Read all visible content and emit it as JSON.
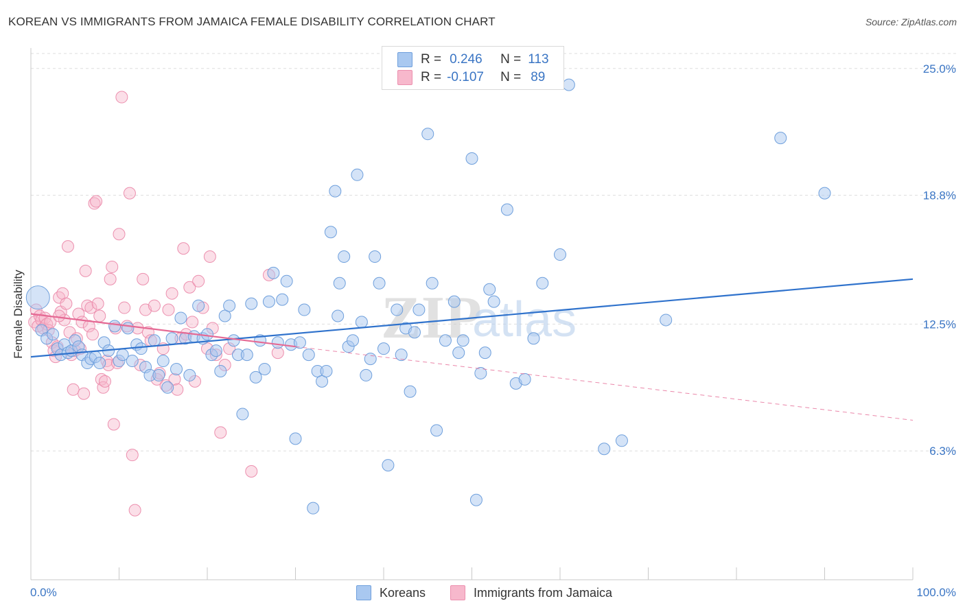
{
  "header": {
    "title": "KOREAN VS IMMIGRANTS FROM JAMAICA FEMALE DISABILITY CORRELATION CHART",
    "source": "Source: ZipAtlas.com"
  },
  "legend": {
    "rows": [
      {
        "r_label": "R =",
        "r_value": "0.246",
        "n_label": "N =",
        "n_value": "113"
      },
      {
        "r_label": "R =",
        "r_value": "-0.107",
        "n_label": "N =",
        "n_value": "89"
      }
    ]
  },
  "watermark": {
    "zip": "ZIP",
    "atlas": "atlas"
  },
  "colors": {
    "korean_fill": "#a9c8f0",
    "korean_stroke": "#6e9fdc",
    "korean_line": "#2f72cc",
    "jamaica_fill": "#f7b8cc",
    "jamaica_stroke": "#ec8fae",
    "jamaica_line": "#e56994",
    "tick_label": "#3a75c4",
    "grid": "#dddddd"
  },
  "chart_data": {
    "type": "scatter",
    "title": "KOREAN VS IMMIGRANTS FROM JAMAICA FEMALE DISABILITY CORRELATION CHART",
    "xlabel": "",
    "ylabel": "Female Disability",
    "xlim": [
      0,
      100
    ],
    "ylim": [
      0,
      26
    ],
    "x_tick_labels": [
      "0.0%",
      "100.0%"
    ],
    "y_ticks": [
      6.3,
      12.5,
      18.8,
      25.0
    ],
    "y_tick_labels": [
      "6.3%",
      "12.5%",
      "18.8%",
      "25.0%"
    ],
    "grid": "horizontal dashed",
    "legend_position": "top-center",
    "series": [
      {
        "name": "Koreans",
        "r": 0.246,
        "n": 113,
        "trend": {
          "x": [
            0,
            100
          ],
          "y": [
            10.9,
            14.7
          ],
          "style": "solid"
        },
        "points": [
          [
            0.8,
            13.8
          ],
          [
            1.2,
            12.2
          ],
          [
            1.8,
            11.8
          ],
          [
            2.5,
            12.0
          ],
          [
            3.0,
            11.3
          ],
          [
            3.4,
            11.0
          ],
          [
            3.8,
            11.5
          ],
          [
            4.2,
            11.1
          ],
          [
            4.6,
            11.2
          ],
          [
            5.0,
            11.7
          ],
          [
            5.4,
            11.4
          ],
          [
            5.8,
            11.0
          ],
          [
            6.4,
            10.6
          ],
          [
            6.8,
            10.8
          ],
          [
            7.3,
            10.9
          ],
          [
            7.8,
            10.6
          ],
          [
            8.3,
            11.6
          ],
          [
            8.8,
            11.2
          ],
          [
            9.5,
            12.4
          ],
          [
            10.0,
            10.7
          ],
          [
            10.4,
            11.0
          ],
          [
            11.0,
            12.3
          ],
          [
            11.5,
            10.7
          ],
          [
            12.0,
            11.5
          ],
          [
            12.5,
            11.3
          ],
          [
            13.0,
            10.4
          ],
          [
            13.5,
            10.0
          ],
          [
            14.0,
            11.7
          ],
          [
            14.5,
            10.0
          ],
          [
            15.0,
            10.7
          ],
          [
            15.5,
            9.4
          ],
          [
            16.0,
            11.8
          ],
          [
            16.5,
            10.3
          ],
          [
            17.0,
            12.8
          ],
          [
            17.5,
            11.8
          ],
          [
            18.0,
            10.0
          ],
          [
            18.5,
            11.9
          ],
          [
            19.0,
            13.4
          ],
          [
            19.5,
            11.8
          ],
          [
            20.0,
            12.0
          ],
          [
            20.5,
            11.0
          ],
          [
            21.0,
            11.2
          ],
          [
            21.5,
            10.2
          ],
          [
            22.0,
            12.9
          ],
          [
            22.5,
            13.4
          ],
          [
            23.0,
            11.7
          ],
          [
            23.5,
            11.0
          ],
          [
            24.0,
            8.1
          ],
          [
            24.5,
            11.0
          ],
          [
            25.0,
            13.5
          ],
          [
            25.5,
            9.9
          ],
          [
            26.0,
            11.7
          ],
          [
            26.5,
            10.3
          ],
          [
            27.0,
            13.6
          ],
          [
            27.5,
            15.0
          ],
          [
            28.0,
            11.6
          ],
          [
            28.5,
            13.7
          ],
          [
            29.0,
            14.6
          ],
          [
            29.5,
            11.5
          ],
          [
            30.0,
            6.9
          ],
          [
            30.5,
            11.6
          ],
          [
            31.0,
            13.2
          ],
          [
            31.5,
            11.0
          ],
          [
            32.0,
            3.5
          ],
          [
            32.5,
            10.2
          ],
          [
            33.0,
            9.7
          ],
          [
            33.5,
            10.2
          ],
          [
            34.0,
            17.0
          ],
          [
            34.5,
            19.0
          ],
          [
            34.8,
            12.9
          ],
          [
            35.0,
            14.5
          ],
          [
            35.5,
            15.8
          ],
          [
            36.0,
            11.4
          ],
          [
            36.5,
            11.7
          ],
          [
            37.0,
            19.8
          ],
          [
            37.5,
            12.6
          ],
          [
            38.0,
            10.0
          ],
          [
            38.5,
            10.8
          ],
          [
            39.0,
            15.8
          ],
          [
            39.5,
            14.5
          ],
          [
            40.0,
            11.3
          ],
          [
            40.5,
            5.6
          ],
          [
            41.5,
            13.2
          ],
          [
            42.0,
            11.0
          ],
          [
            42.5,
            12.3
          ],
          [
            43.0,
            9.2
          ],
          [
            43.5,
            12.1
          ],
          [
            44.0,
            13.2
          ],
          [
            45.0,
            21.8
          ],
          [
            45.5,
            14.5
          ],
          [
            46.0,
            7.3
          ],
          [
            47.0,
            11.7
          ],
          [
            48.0,
            13.6
          ],
          [
            48.5,
            11.1
          ],
          [
            49.0,
            11.7
          ],
          [
            50.0,
            20.6
          ],
          [
            50.5,
            3.9
          ],
          [
            51.0,
            10.1
          ],
          [
            51.5,
            11.1
          ],
          [
            52.0,
            14.2
          ],
          [
            52.5,
            13.6
          ],
          [
            54.0,
            18.1
          ],
          [
            55.0,
            9.6
          ],
          [
            56.0,
            9.8
          ],
          [
            57.0,
            11.8
          ],
          [
            58.0,
            14.5
          ],
          [
            60.0,
            15.9
          ],
          [
            65.0,
            6.4
          ],
          [
            67.0,
            6.8
          ],
          [
            72.0,
            12.7
          ],
          [
            85.0,
            21.6
          ],
          [
            90.0,
            18.9
          ],
          [
            61.0,
            24.2
          ]
        ]
      },
      {
        "name": "Immigrants from Jamaica",
        "r": -0.107,
        "n": 89,
        "trend": {
          "x": [
            0,
            30,
            100
          ],
          "y": [
            13.0,
            11.4,
            7.8
          ],
          "style": "solid then dashed"
        },
        "points": [
          [
            0.4,
            12.6
          ],
          [
            0.6,
            13.2
          ],
          [
            0.8,
            12.4
          ],
          [
            1.0,
            12.9
          ],
          [
            1.2,
            12.7
          ],
          [
            1.4,
            12.3
          ],
          [
            1.6,
            12.8
          ],
          [
            1.8,
            12.5
          ],
          [
            2.0,
            12.2
          ],
          [
            2.2,
            12.6
          ],
          [
            2.4,
            11.6
          ],
          [
            2.6,
            11.2
          ],
          [
            2.8,
            10.9
          ],
          [
            3.0,
            11.4
          ],
          [
            3.2,
            13.8
          ],
          [
            3.4,
            13.1
          ],
          [
            3.6,
            14.0
          ],
          [
            3.8,
            12.7
          ],
          [
            4.0,
            13.5
          ],
          [
            4.2,
            16.3
          ],
          [
            4.4,
            12.1
          ],
          [
            4.6,
            11.0
          ],
          [
            4.8,
            9.3
          ],
          [
            5.0,
            11.2
          ],
          [
            5.2,
            11.8
          ],
          [
            5.4,
            13.0
          ],
          [
            5.6,
            11.3
          ],
          [
            5.8,
            12.6
          ],
          [
            6.0,
            9.1
          ],
          [
            6.2,
            15.1
          ],
          [
            6.4,
            13.4
          ],
          [
            6.6,
            12.4
          ],
          [
            6.8,
            13.3
          ],
          [
            7.0,
            12.0
          ],
          [
            7.2,
            18.4
          ],
          [
            7.4,
            18.5
          ],
          [
            7.6,
            13.5
          ],
          [
            7.8,
            12.9
          ],
          [
            8.0,
            9.8
          ],
          [
            8.2,
            9.4
          ],
          [
            8.4,
            9.7
          ],
          [
            8.6,
            10.7
          ],
          [
            8.8,
            10.5
          ],
          [
            9.0,
            14.7
          ],
          [
            9.2,
            15.3
          ],
          [
            9.4,
            7.6
          ],
          [
            9.6,
            12.3
          ],
          [
            9.8,
            10.6
          ],
          [
            10.0,
            16.9
          ],
          [
            10.3,
            23.6
          ],
          [
            10.6,
            13.3
          ],
          [
            10.9,
            12.4
          ],
          [
            11.2,
            18.9
          ],
          [
            11.5,
            6.1
          ],
          [
            11.8,
            3.4
          ],
          [
            12.1,
            12.3
          ],
          [
            12.4,
            10.5
          ],
          [
            12.7,
            14.7
          ],
          [
            13.0,
            13.2
          ],
          [
            13.3,
            12.1
          ],
          [
            13.6,
            11.7
          ],
          [
            14.0,
            13.4
          ],
          [
            14.3,
            9.8
          ],
          [
            14.6,
            10.1
          ],
          [
            15.0,
            11.3
          ],
          [
            15.3,
            9.5
          ],
          [
            15.6,
            13.2
          ],
          [
            16.0,
            14.0
          ],
          [
            16.3,
            9.8
          ],
          [
            16.6,
            9.3
          ],
          [
            17.0,
            11.8
          ],
          [
            17.3,
            16.2
          ],
          [
            17.6,
            12.0
          ],
          [
            18.0,
            14.3
          ],
          [
            18.3,
            12.6
          ],
          [
            18.6,
            9.7
          ],
          [
            19.0,
            14.6
          ],
          [
            19.5,
            13.3
          ],
          [
            20.0,
            11.3
          ],
          [
            20.3,
            15.8
          ],
          [
            20.6,
            12.3
          ],
          [
            21.0,
            11.0
          ],
          [
            21.5,
            7.2
          ],
          [
            22.0,
            10.5
          ],
          [
            22.5,
            11.3
          ],
          [
            25.0,
            5.3
          ],
          [
            27.0,
            14.9
          ],
          [
            28.0,
            11.1
          ],
          [
            3.2,
            12.9
          ]
        ]
      }
    ]
  }
}
